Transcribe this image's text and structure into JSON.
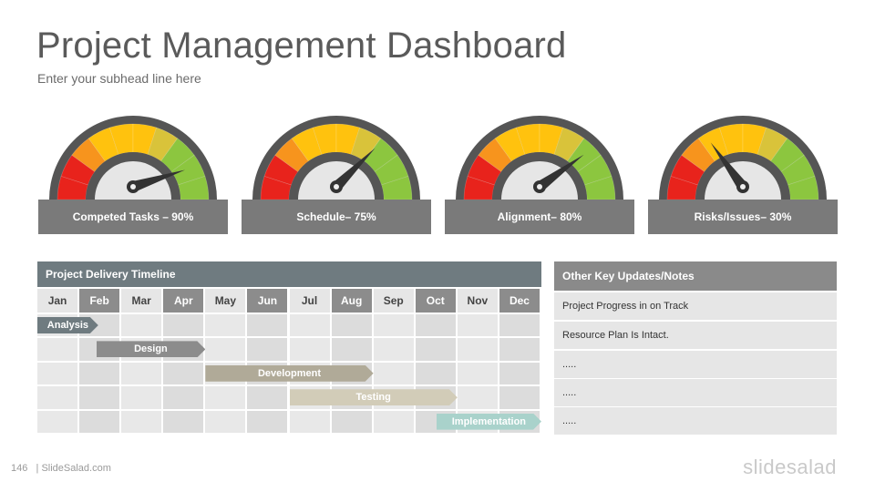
{
  "header": {
    "title": "Project Management Dashboard",
    "subhead": "Enter your subhead line here"
  },
  "gauges": [
    {
      "label": "Competed Tasks – 90%",
      "value_percent": 90
    },
    {
      "label": "Schedule– 75%",
      "value_percent": 75
    },
    {
      "label": "Alignment– 80%",
      "value_percent": 80
    },
    {
      "label": "Risks/Issues– 30%",
      "value_percent": 30
    }
  ],
  "colors": {
    "gauge_red": "#e8231c",
    "gauge_orange": "#f7941d",
    "gauge_yellow": "#ffc20e",
    "gauge_green": "#8cc63f",
    "gauge_rim": "#555555",
    "needle": "#333333",
    "label_bg": "#7a7a7a"
  },
  "timeline": {
    "title": "Project Delivery Timeline",
    "months": [
      "Jan",
      "Feb",
      "Mar",
      "Apr",
      "May",
      "Jun",
      "Jul",
      "Aug",
      "Sep",
      "Oct",
      "Nov",
      "Dec"
    ],
    "tasks": [
      {
        "name": "Analysis",
        "color": "#6f7b80"
      },
      {
        "name": "Design",
        "color": "#8c8c8c"
      },
      {
        "name": "Development",
        "color": "#b0aa98"
      },
      {
        "name": "Testing",
        "color": "#d2ccb8"
      },
      {
        "name": "Implementation",
        "color": "#a9d2cb"
      }
    ]
  },
  "notes": {
    "title": "Other Key Updates/Notes",
    "items": [
      "Project Progress in on Track",
      "Resource Plan Is Intact.",
      ".....",
      ".....",
      "....."
    ]
  },
  "footer": {
    "page_number": "146",
    "source": "| SlideSalad.com",
    "logo": "slidesalad"
  }
}
